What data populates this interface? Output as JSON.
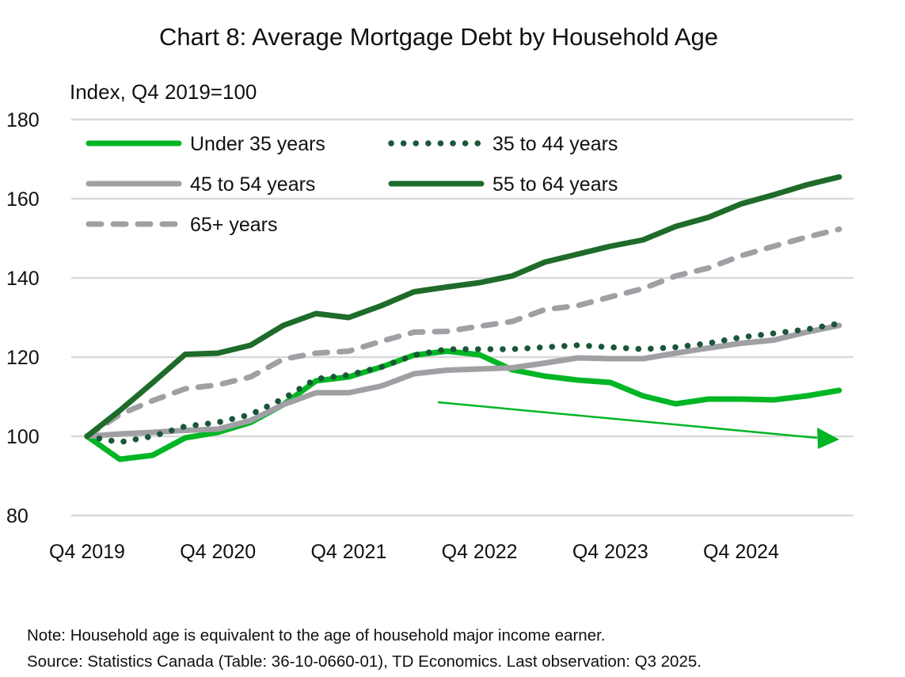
{
  "chart_data": {
    "type": "line",
    "title": "Chart 8: Average Mortgage Debt by Household Age",
    "ylabel": "Index, Q4 2019=100",
    "xlabel": "",
    "ylim": [
      80,
      180
    ],
    "yticks": [
      80,
      100,
      120,
      140,
      160,
      180
    ],
    "xtick_labels": [
      "Q4 2019",
      "Q4 2020",
      "Q4 2021",
      "Q4 2022",
      "Q4 2023",
      "Q4 2024"
    ],
    "x": [
      "Q4 2019",
      "Q1 2020",
      "Q2 2020",
      "Q3 2020",
      "Q4 2020",
      "Q1 2021",
      "Q2 2021",
      "Q3 2021",
      "Q4 2021",
      "Q1 2022",
      "Q2 2022",
      "Q3 2022",
      "Q4 2022",
      "Q1 2023",
      "Q2 2023",
      "Q3 2023",
      "Q4 2023",
      "Q1 2024",
      "Q2 2024",
      "Q3 2024",
      "Q4 2024",
      "Q1 2025",
      "Q2 2025",
      "Q3 2025"
    ],
    "grid": true,
    "legend_position": "top-left",
    "series": [
      {
        "name": "Under 35 years",
        "color": "#00b624",
        "style": "solid",
        "values": [
          100,
          94.2,
          95.2,
          99.6,
          101,
          103.5,
          108,
          114,
          115,
          117.5,
          120.5,
          121.5,
          120.6,
          116.8,
          115.2,
          114.2,
          113.6,
          110.2,
          108.2,
          109.4,
          109.4,
          109.2,
          110.2,
          111.6
        ]
      },
      {
        "name": "35 to 44 years",
        "color": "#1b5638",
        "style": "dotted",
        "values": [
          100,
          98.5,
          100,
          102.5,
          103.5,
          105.5,
          109.5,
          114.5,
          115.5,
          117.5,
          120.5,
          122,
          122,
          122,
          122.5,
          123,
          122.5,
          122,
          122.5,
          123.5,
          125,
          126,
          127,
          128.5
        ]
      },
      {
        "name": "45 to 54 years",
        "color": "#a09fa4",
        "style": "solid",
        "values": [
          100,
          100.6,
          101,
          101.5,
          101.8,
          104,
          108,
          111,
          111,
          112.7,
          115.8,
          116.7,
          117,
          117.3,
          118.5,
          119.8,
          119.6,
          119.6,
          121,
          122.3,
          123.5,
          124.3,
          126.3,
          128
        ]
      },
      {
        "name": "55 to 64 years",
        "color": "#1e6b2a",
        "style": "solid",
        "values": [
          100,
          106.5,
          113.5,
          120.7,
          121,
          123,
          128,
          131,
          130,
          133,
          136.5,
          137.7,
          138.8,
          140.5,
          144,
          146,
          148,
          149.6,
          153,
          155.3,
          158.7,
          161,
          163.5,
          165.5
        ]
      },
      {
        "name": "65+ years",
        "color": "#a09fa4",
        "style": "dashed",
        "values": [
          100,
          105.5,
          109,
          112,
          113,
          115,
          119.5,
          121,
          121.5,
          124,
          126.3,
          126.5,
          127.8,
          129,
          132,
          133,
          135.2,
          137.3,
          140.5,
          142.5,
          145.6,
          148,
          150.3,
          152.3
        ]
      }
    ],
    "annotations": [
      {
        "type": "arrow",
        "color": "#00b624"
      }
    ]
  },
  "footer": {
    "note": "Note: Household age is equivalent to the age of household major income earner.",
    "source": "Source: Statistics Canada (Table: 36-10-0660-01), TD Economics. Last observation: Q3 2025."
  }
}
